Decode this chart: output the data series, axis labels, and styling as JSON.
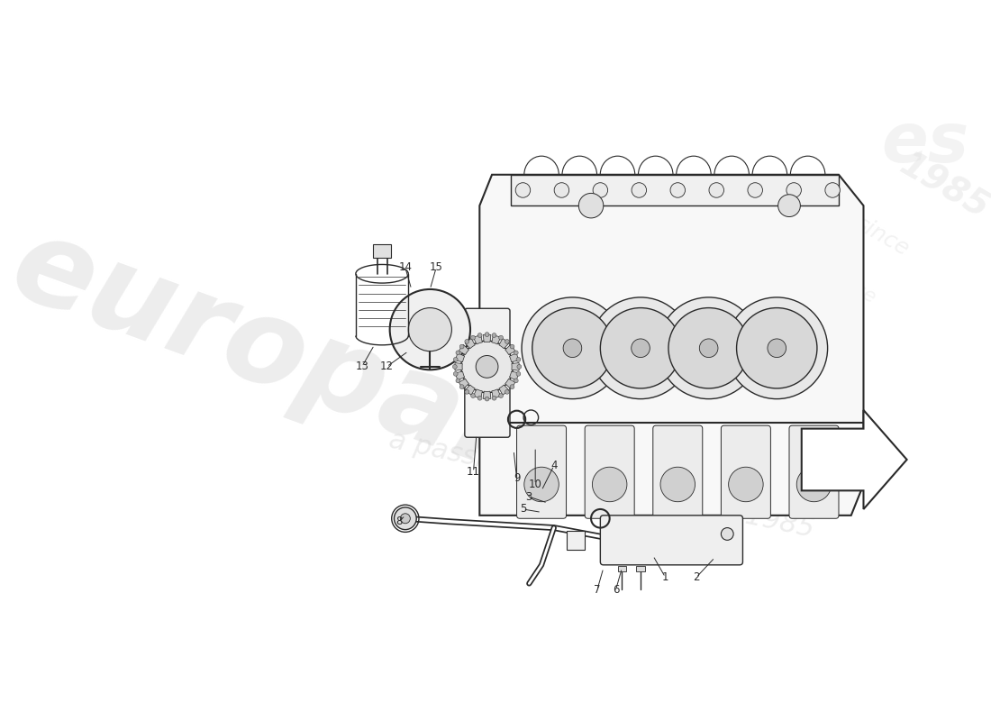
{
  "background_color": "#ffffff",
  "line_color": "#2a2a2a",
  "light_line_color": "#555555",
  "figsize": [
    11.0,
    8.0
  ],
  "dpi": 100,
  "watermark1": "europarts",
  "watermark2": "a passion for parts - since 1985",
  "wm_color": "#cccccc",
  "arrow_outline_color": "#333333",
  "part_numbers": [
    "1",
    "2",
    "3",
    "4",
    "5",
    "6",
    "7",
    "8",
    "9",
    "10",
    "11",
    "12",
    "13",
    "14",
    "15"
  ]
}
